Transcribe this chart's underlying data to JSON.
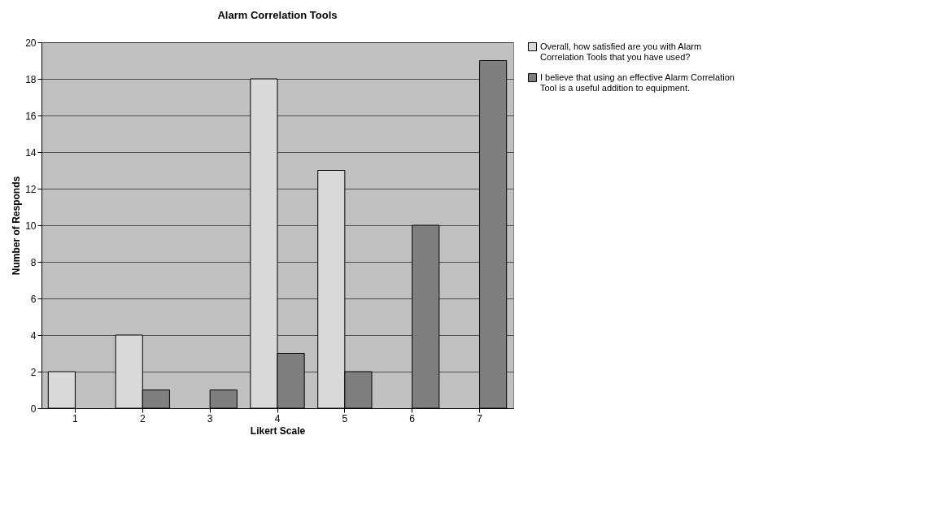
{
  "chart_data": {
    "type": "bar",
    "title": "Alarm Correlation Tools",
    "xlabel": "Likert Scale",
    "ylabel": "Number of Responds",
    "categories": [
      "1",
      "2",
      "3",
      "4",
      "5",
      "6",
      "7"
    ],
    "series": [
      {
        "name": "Overall, how satisfied are you with Alarm Correlation Tools that you have used?",
        "color": "#d9d9d9",
        "values": [
          2,
          4,
          null,
          18,
          13,
          null,
          null
        ]
      },
      {
        "name": "I believe that using an effective Alarm Correlation Tool is a useful addition to equipment.",
        "color": "#7f7f7f",
        "values": [
          null,
          1,
          1,
          3,
          2,
          10,
          19
        ]
      }
    ],
    "ylim": [
      0,
      20
    ],
    "yticks": [
      0,
      2,
      4,
      6,
      8,
      10,
      12,
      14,
      16,
      18,
      20
    ],
    "grid": "y",
    "legend": "right"
  }
}
